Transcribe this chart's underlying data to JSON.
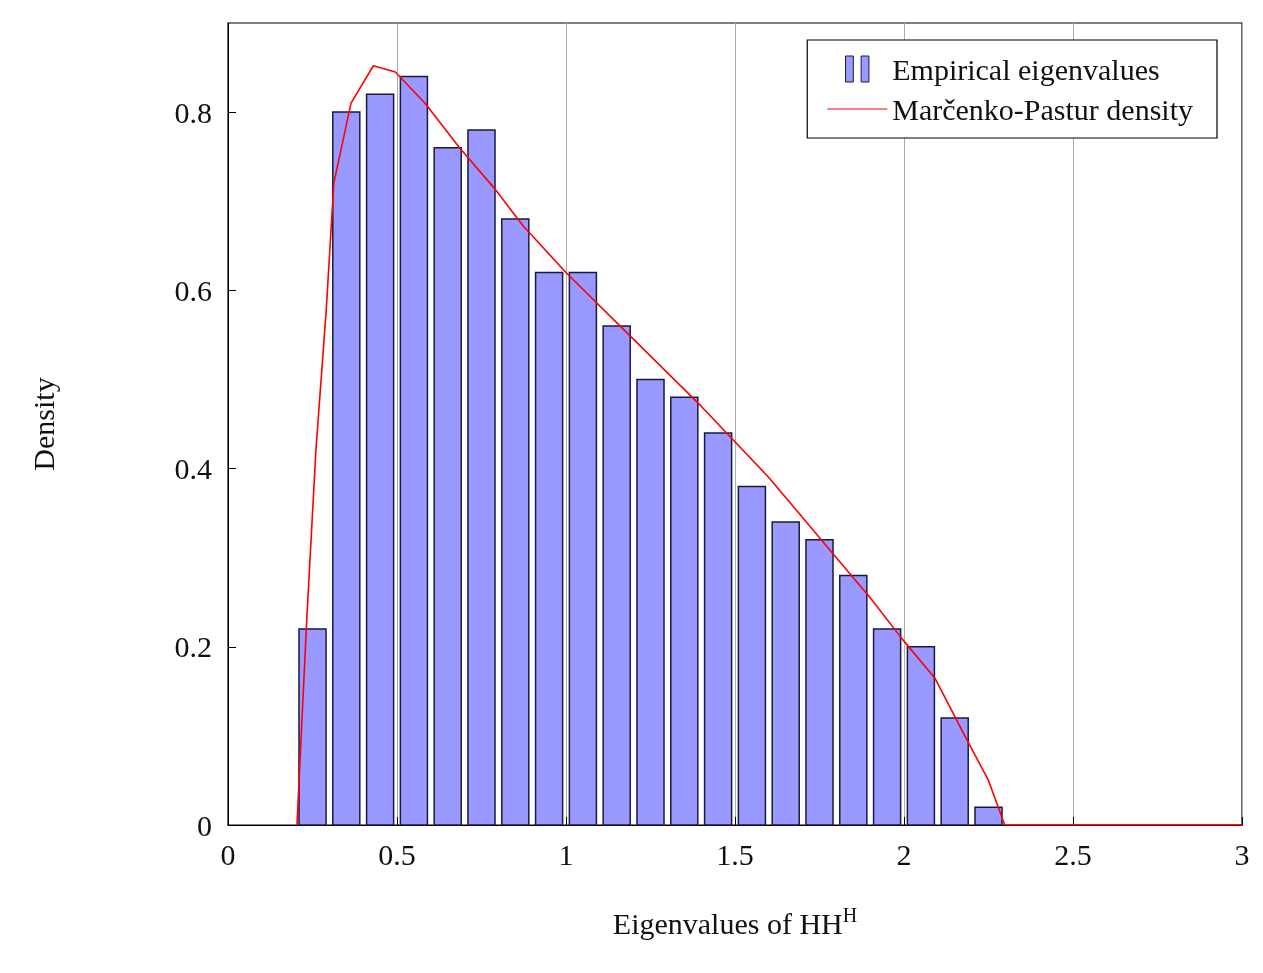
{
  "chart_data": {
    "type": "histogram",
    "xlabel": "Eigenvalues of HH$^{H}$",
    "ylabel": "Density",
    "bins": [
      0.2,
      0.3,
      0.4,
      0.5,
      0.6,
      0.7,
      0.8,
      0.9,
      1.0,
      1.1,
      1.2,
      1.3,
      1.4,
      1.5,
      1.6,
      1.7,
      1.8,
      1.9,
      2.0,
      2.1,
      2.2,
      2.3
    ],
    "series": [
      {
        "name": "Empirical eigenvalues",
        "color": "#9999ff",
        "values": [
          0.22,
          0.8,
          0.82,
          0.84,
          0.76,
          0.78,
          0.68,
          0.62,
          0.62,
          0.56,
          0.5,
          0.48,
          0.44,
          0.38,
          0.34,
          0.32,
          0.28,
          0.22,
          0.2,
          0.12,
          0.02
        ]
      },
      {
        "name": "Marčenko-Pastur density",
        "type": "line",
        "color": "#ff0000",
        "x": [
          0.204,
          0.233,
          0.26,
          0.291,
          0.313,
          0.364,
          0.43,
          0.495,
          0.583,
          0.685,
          0.787,
          0.874,
          1.0,
          1.2,
          1.4,
          1.6,
          1.8,
          1.9,
          1.992,
          2.091,
          2.18,
          2.25,
          2.298,
          3.0
        ],
        "values": [
          0,
          0.23,
          0.42,
          0.58,
          0.72,
          0.81,
          0.852,
          0.845,
          0.81,
          0.76,
          0.715,
          0.672,
          0.62,
          0.545,
          0.47,
          0.39,
          0.3,
          0.255,
          0.21,
          0.165,
          0.1,
          0.05,
          0,
          0
        ]
      }
    ],
    "xlim": [
      0,
      3
    ],
    "xticks": [
      0,
      0.5,
      1,
      1.5,
      2,
      2.5,
      3
    ],
    "ylim": [
      0,
      0.9
    ],
    "yticks": [
      0,
      0.2,
      0.4,
      0.6,
      0.8
    ],
    "grid": "x",
    "legend": "top right"
  }
}
